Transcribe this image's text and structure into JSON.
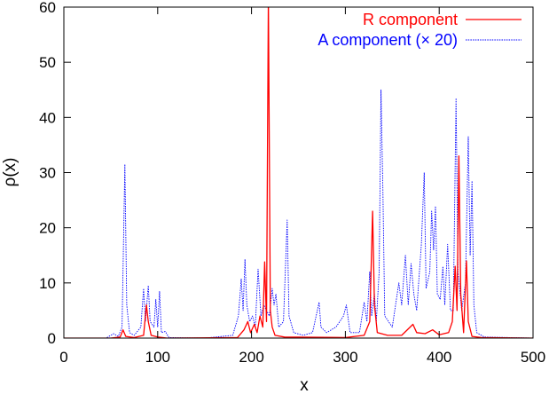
{
  "chart_data": {
    "type": "line",
    "title": "",
    "xlabel": "x",
    "ylabel": "ρ(x)",
    "xlim": [
      0,
      500
    ],
    "ylim": [
      0,
      60
    ],
    "xticks": [
      0,
      100,
      200,
      300,
      400,
      500
    ],
    "yticks": [
      0,
      10,
      20,
      30,
      40,
      50,
      60
    ],
    "grid": false,
    "legend_position": "top-right",
    "series": [
      {
        "name": "R component",
        "color": "#ff0000",
        "style": "solid",
        "points": [
          [
            0,
            0
          ],
          [
            50,
            0
          ],
          [
            60,
            0.2
          ],
          [
            63,
            1.5
          ],
          [
            66,
            0.3
          ],
          [
            75,
            0.1
          ],
          [
            85,
            0.5
          ],
          [
            88,
            6
          ],
          [
            90,
            3
          ],
          [
            93,
            0.5
          ],
          [
            100,
            0.2
          ],
          [
            110,
            0
          ],
          [
            185,
            0.1
          ],
          [
            192,
            1.5
          ],
          [
            196,
            3
          ],
          [
            199,
            1
          ],
          [
            203,
            2.5
          ],
          [
            206,
            1
          ],
          [
            209,
            4
          ],
          [
            212,
            2
          ],
          [
            214,
            13.8
          ],
          [
            216,
            3
          ],
          [
            218,
            62
          ],
          [
            220,
            5
          ],
          [
            222,
            2
          ],
          [
            225,
            0.5
          ],
          [
            235,
            0.2
          ],
          [
            300,
            0.1
          ],
          [
            320,
            0.5
          ],
          [
            326,
            3
          ],
          [
            329,
            23
          ],
          [
            331,
            6
          ],
          [
            334,
            1
          ],
          [
            345,
            0.5
          ],
          [
            360,
            0.5
          ],
          [
            372,
            2.5
          ],
          [
            376,
            1
          ],
          [
            385,
            0.8
          ],
          [
            393,
            1.5
          ],
          [
            400,
            0.6
          ],
          [
            410,
            1
          ],
          [
            414,
            3
          ],
          [
            417,
            13
          ],
          [
            419,
            5
          ],
          [
            421,
            33
          ],
          [
            423,
            8
          ],
          [
            426,
            1
          ],
          [
            429,
            14
          ],
          [
            431,
            3
          ],
          [
            435,
            0.3
          ],
          [
            445,
            0.1
          ],
          [
            500,
            0
          ]
        ]
      },
      {
        "name": "A component (× 20)",
        "color": "#0000ff",
        "style": "dotted",
        "points": [
          [
            0,
            0
          ],
          [
            45,
            0
          ],
          [
            53,
            0.8
          ],
          [
            58,
            0.3
          ],
          [
            62,
            2
          ],
          [
            65,
            31.5
          ],
          [
            67,
            6
          ],
          [
            70,
            1
          ],
          [
            75,
            0.5
          ],
          [
            82,
            2
          ],
          [
            85,
            9
          ],
          [
            87,
            3
          ],
          [
            90,
            9.5
          ],
          [
            92,
            3
          ],
          [
            96,
            2
          ],
          [
            98,
            7
          ],
          [
            100,
            2
          ],
          [
            102,
            8.5
          ],
          [
            104,
            1
          ],
          [
            108,
            1.2
          ],
          [
            112,
            0.1
          ],
          [
            150,
            0
          ],
          [
            180,
            0.5
          ],
          [
            186,
            4
          ],
          [
            189,
            10.7
          ],
          [
            191,
            5
          ],
          [
            193,
            14.3
          ],
          [
            195,
            6
          ],
          [
            198,
            3
          ],
          [
            201,
            4
          ],
          [
            204,
            2
          ],
          [
            207,
            12.5
          ],
          [
            210,
            4
          ],
          [
            213,
            6
          ],
          [
            216,
            5
          ],
          [
            219,
            4
          ],
          [
            222,
            9
          ],
          [
            224,
            6
          ],
          [
            226,
            8
          ],
          [
            229,
            2
          ],
          [
            234,
            3
          ],
          [
            238,
            21.4
          ],
          [
            240,
            4
          ],
          [
            245,
            1
          ],
          [
            255,
            0.5
          ],
          [
            265,
            1
          ],
          [
            272,
            6.5
          ],
          [
            274,
            2
          ],
          [
            280,
            1
          ],
          [
            290,
            2
          ],
          [
            298,
            4
          ],
          [
            301,
            6
          ],
          [
            305,
            1
          ],
          [
            315,
            1
          ],
          [
            320,
            6.5
          ],
          [
            323,
            3
          ],
          [
            326,
            12
          ],
          [
            328,
            4
          ],
          [
            331,
            8
          ],
          [
            333,
            3
          ],
          [
            336,
            12
          ],
          [
            338,
            45
          ],
          [
            340,
            27
          ],
          [
            342,
            4
          ],
          [
            346,
            3
          ],
          [
            350,
            2
          ],
          [
            357,
            10
          ],
          [
            360,
            6
          ],
          [
            364,
            15
          ],
          [
            367,
            6
          ],
          [
            370,
            13.5
          ],
          [
            373,
            8
          ],
          [
            376,
            5
          ],
          [
            381,
            17
          ],
          [
            384,
            30
          ],
          [
            386,
            9
          ],
          [
            390,
            12
          ],
          [
            392,
            23
          ],
          [
            394,
            16
          ],
          [
            396,
            23.9
          ],
          [
            398,
            8
          ],
          [
            401,
            7
          ],
          [
            404,
            13
          ],
          [
            406,
            6
          ],
          [
            409,
            17
          ],
          [
            412,
            5
          ],
          [
            415,
            5
          ],
          [
            418,
            43.5
          ],
          [
            420,
            12
          ],
          [
            424,
            5
          ],
          [
            428,
            10
          ],
          [
            431,
            36.5
          ],
          [
            433,
            15
          ],
          [
            435,
            28.5
          ],
          [
            437,
            6
          ],
          [
            440,
            1
          ],
          [
            448,
            0.2
          ],
          [
            500,
            0
          ]
        ]
      }
    ]
  }
}
